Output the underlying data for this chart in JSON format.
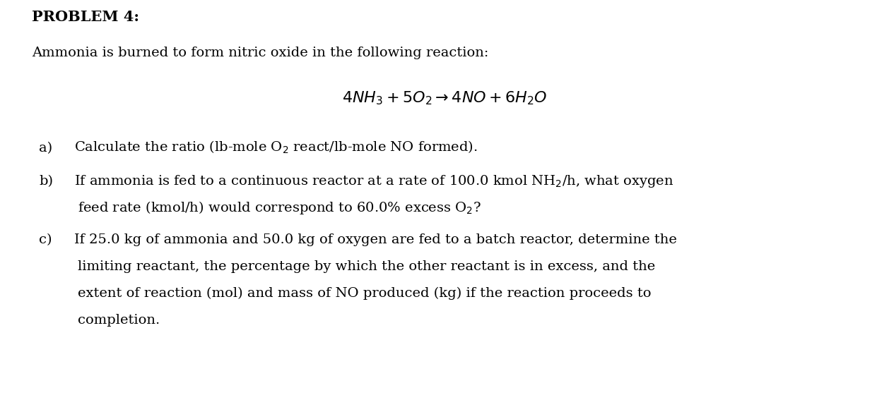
{
  "background_color": "#ffffff",
  "title": "PROBLEM 4:",
  "intro_text": "Ammonia is burned to form nitric oxide in the following reaction:",
  "equation": "$4NH_3 + 5O_2 \\rightarrow 4NO + 6H_2O$",
  "item_a": "Calculate the ratio (lb-mole O$_2$ react/lb-mole NO formed).",
  "item_b_line1": "If ammonia is fed to a continuous reactor at a rate of 100.0 kmol NH$_2$/h, what oxygen",
  "item_b_line2": "feed rate (kmol/h) would correspond to 60.0% excess O$_2$?",
  "item_c_line1": "If 25.0 kg of ammonia and 50.0 kg of oxygen are fed to a batch reactor, determine the",
  "item_c_line2": "limiting reactant, the percentage by which the other reactant is in excess, and the",
  "item_c_line3": "extent of reaction (mol) and mass of NO produced (kg) if the reaction proceeds to",
  "item_c_line4": "completion.",
  "font_family": "DejaVu Serif",
  "title_fontsize": 15,
  "text_fontsize": 14,
  "equation_fontsize": 16,
  "fig_width": 12.58,
  "fig_height": 5.94,
  "dpi": 100
}
